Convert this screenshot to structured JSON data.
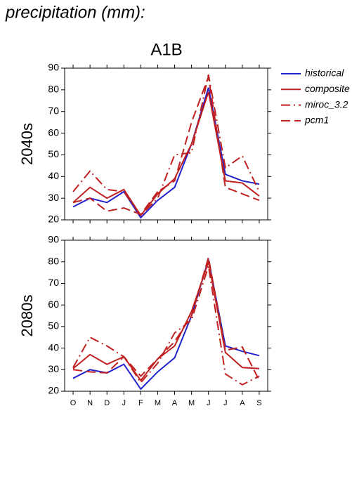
{
  "header": "precipitation (mm):",
  "chart_data": [
    {
      "type": "line",
      "title": "A1B",
      "y_label": "2040s",
      "ylim": [
        20,
        90
      ],
      "yticks": [
        20,
        30,
        40,
        50,
        60,
        70,
        80,
        90
      ],
      "legend": "outside right",
      "series": [
        {
          "name": "historical",
          "color": "#2222cc",
          "style": "solid",
          "values": [
            26,
            30,
            28,
            33,
            21,
            29,
            35,
            55,
            81,
            41,
            38,
            36.5
          ]
        },
        {
          "name": "composite",
          "color": "#c02020",
          "style": "solid",
          "values": [
            28,
            35,
            30,
            34,
            22,
            32,
            39,
            55,
            79,
            38,
            37,
            31
          ]
        },
        {
          "name": "miroc_3.2",
          "color": "#c02020",
          "style": "dashdot",
          "values": [
            33,
            42.5,
            34,
            33,
            22,
            30,
            50,
            51,
            87,
            44,
            49.5,
            33
          ]
        },
        {
          "name": "pcm1",
          "color": "#c02020",
          "style": "dashed",
          "values": [
            28,
            30,
            24,
            25.5,
            22.5,
            33,
            38,
            65,
            86,
            35,
            32,
            29
          ]
        }
      ]
    },
    {
      "type": "line",
      "y_label": "2080s",
      "categories": [
        "O",
        "N",
        "D",
        "J",
        "F",
        "M",
        "A",
        "M",
        "J",
        "J",
        "A",
        "S"
      ],
      "ylim": [
        20,
        90
      ],
      "yticks": [
        20,
        30,
        40,
        50,
        60,
        70,
        80,
        90
      ],
      "series": [
        {
          "color": "#2222cc",
          "style": "solid",
          "values": [
            26,
            30,
            28.5,
            32.5,
            21,
            29,
            35.5,
            55,
            81,
            41,
            38.5,
            36.5
          ]
        },
        {
          "color": "#c02020",
          "style": "solid",
          "values": [
            30.5,
            37,
            32.5,
            36,
            25,
            35,
            41,
            57,
            80,
            38,
            31,
            30.5
          ]
        },
        {
          "color": "#c02020",
          "style": "dashdot",
          "values": [
            31,
            45,
            41,
            36,
            24,
            33,
            47,
            53,
            78,
            28,
            23,
            27
          ]
        },
        {
          "color": "#c02020",
          "style": "dashed",
          "values": [
            30,
            29,
            28.5,
            36,
            27,
            35,
            43,
            55,
            82,
            39,
            40.5,
            25
          ]
        }
      ]
    }
  ]
}
